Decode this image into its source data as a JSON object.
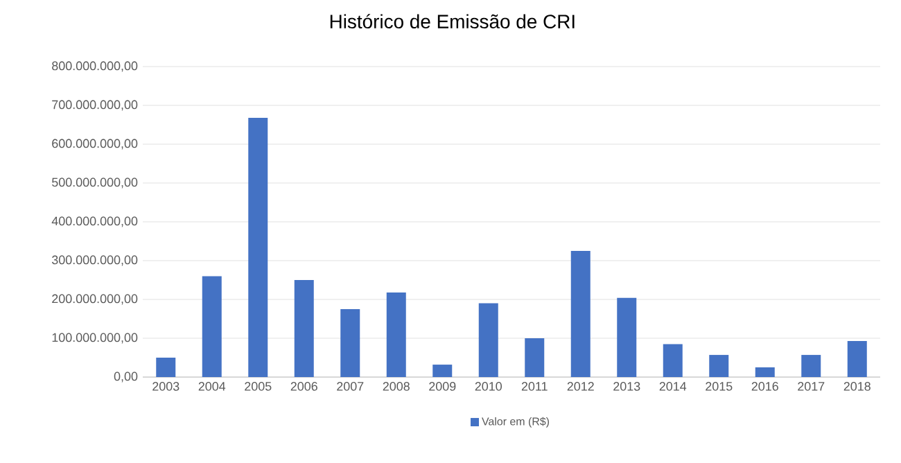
{
  "chart_data": {
    "type": "bar",
    "title": "Histórico de Emissão de CRI",
    "categories": [
      "2003",
      "2004",
      "2005",
      "2006",
      "2007",
      "2008",
      "2009",
      "2010",
      "2011",
      "2012",
      "2013",
      "2014",
      "2015",
      "2016",
      "2017",
      "2018"
    ],
    "series": [
      {
        "name": "Valor em (R$)",
        "color": "#4472c4",
        "values": [
          50000000,
          260000000,
          668000000,
          250000000,
          175000000,
          218000000,
          32000000,
          190000000,
          100000000,
          325000000,
          204000000,
          85000000,
          57000000,
          25000000,
          57000000,
          93000000
        ]
      }
    ],
    "ylim": [
      0,
      800000000
    ],
    "yticks": [
      {
        "value": 0,
        "label": "0,00"
      },
      {
        "value": 100000000,
        "label": "100.000.000,00"
      },
      {
        "value": 200000000,
        "label": "200.000.000,00"
      },
      {
        "value": 300000000,
        "label": "300.000.000,00"
      },
      {
        "value": 400000000,
        "label": "400.000.000,00"
      },
      {
        "value": 500000000,
        "label": "500.000.000,00"
      },
      {
        "value": 600000000,
        "label": "600.000.000,00"
      },
      {
        "value": 700000000,
        "label": "700.000.000,00"
      },
      {
        "value": 800000000,
        "label": "800.000.000,00"
      }
    ],
    "grid": "y",
    "legend": "bottom"
  }
}
